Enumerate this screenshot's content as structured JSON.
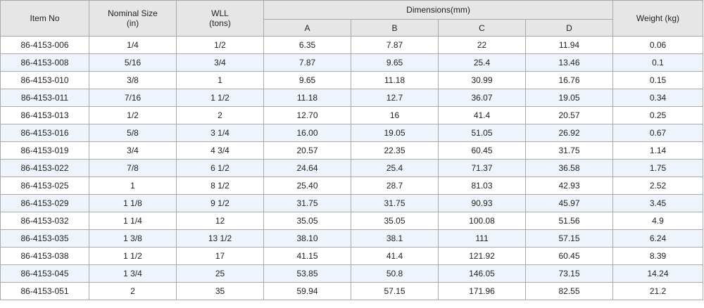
{
  "headers": {
    "item_no": "Item No",
    "nominal_size": "Nominal Size",
    "nominal_size_unit": "(in)",
    "wll": "WLL",
    "wll_unit": "(tons)",
    "dimensions": "Dimensions(mm)",
    "dim_a": "A",
    "dim_b": "B",
    "dim_c": "C",
    "dim_d": "D",
    "weight": "Weight (kg)"
  },
  "rows": [
    {
      "item": "86-4153-006",
      "size": "1/4",
      "wll": "1/2",
      "a": "6.35",
      "b": "7.87",
      "c": "22",
      "d": "11.94",
      "weight": "0.06"
    },
    {
      "item": "86-4153-008",
      "size": "5/16",
      "wll": "3/4",
      "a": "7.87",
      "b": "9.65",
      "c": "25.4",
      "d": "13.46",
      "weight": "0.1"
    },
    {
      "item": "86-4153-010",
      "size": "3/8",
      "wll": "1",
      "a": "9.65",
      "b": "11.18",
      "c": "30.99",
      "d": "16.76",
      "weight": "0.15"
    },
    {
      "item": "86-4153-011",
      "size": "7/16",
      "wll": "1 1/2",
      "a": "11.18",
      "b": "12.7",
      "c": "36.07",
      "d": "19.05",
      "weight": "0.34"
    },
    {
      "item": "86-4153-013",
      "size": "1/2",
      "wll": "2",
      "a": "12.70",
      "b": "16",
      "c": "41.4",
      "d": "20.57",
      "weight": "0.25"
    },
    {
      "item": "86-4153-016",
      "size": "5/8",
      "wll": "3 1/4",
      "a": "16.00",
      "b": "19.05",
      "c": "51.05",
      "d": "26.92",
      "weight": "0.67"
    },
    {
      "item": "86-4153-019",
      "size": "3/4",
      "wll": "4 3/4",
      "a": "20.57",
      "b": "22.35",
      "c": "60.45",
      "d": "31.75",
      "weight": "1.14"
    },
    {
      "item": "86-4153-022",
      "size": "7/8",
      "wll": "6 1/2",
      "a": "24.64",
      "b": "25.4",
      "c": "71.37",
      "d": "36.58",
      "weight": "1.75"
    },
    {
      "item": "86-4153-025",
      "size": "1",
      "wll": "8 1/2",
      "a": "25.40",
      "b": "28.7",
      "c": "81.03",
      "d": "42.93",
      "weight": "2.52"
    },
    {
      "item": "86-4153-029",
      "size": "1 1/8",
      "wll": "9 1/2",
      "a": "31.75",
      "b": "31.75",
      "c": "90.93",
      "d": "45.97",
      "weight": "3.45"
    },
    {
      "item": "86-4153-032",
      "size": "1 1/4",
      "wll": "12",
      "a": "35.05",
      "b": "35.05",
      "c": "100.08",
      "d": "51.56",
      "weight": "4.9"
    },
    {
      "item": "86-4153-035",
      "size": "1 3/8",
      "wll": "13 1/2",
      "a": "38.10",
      "b": "38.1",
      "c": "111",
      "d": "57.15",
      "weight": "6.24"
    },
    {
      "item": "86-4153-038",
      "size": "1 1/2",
      "wll": "17",
      "a": "41.15",
      "b": "41.4",
      "c": "121.92",
      "d": "60.45",
      "weight": "8.39"
    },
    {
      "item": "86-4153-045",
      "size": "1 3/4",
      "wll": "25",
      "a": "53.85",
      "b": "50.8",
      "c": "146.05",
      "d": "73.15",
      "weight": "14.24"
    },
    {
      "item": "86-4153-051",
      "size": "2",
      "wll": "35",
      "a": "59.94",
      "b": "57.15",
      "c": "171.96",
      "d": "82.55",
      "weight": "21.2"
    }
  ]
}
